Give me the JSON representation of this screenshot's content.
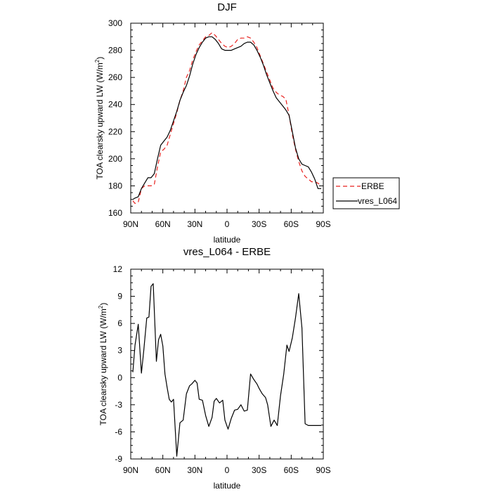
{
  "colors": {
    "erbe": "#e8221f",
    "model": "#000000"
  },
  "chart_data": [
    {
      "type": "line",
      "title": "DJF",
      "xlabel": "latitude",
      "ylabel": "TOA clearsky upward LW (W/m",
      "ylabel_sup": "2",
      "ylabel_end": ")",
      "xlim": [
        -90,
        90
      ],
      "ylim": [
        160,
        300
      ],
      "xticks": [
        -90,
        -60,
        -30,
        0,
        30,
        60,
        90
      ],
      "xticklabels": [
        "90N",
        "60N",
        "30N",
        "0",
        "30S",
        "60S",
        "90S"
      ],
      "yticks": [
        160,
        180,
        200,
        220,
        240,
        260,
        280,
        300
      ],
      "yticklabels": [
        "160",
        "180",
        "200",
        "220",
        "240",
        "260",
        "280",
        "300"
      ],
      "legend": {
        "position": "right",
        "labels": [
          "ERBE",
          "vres_L064"
        ]
      },
      "series": [
        {
          "name": "ERBE",
          "style": "dashed",
          "x": [
            -88,
            -86,
            -83,
            -80,
            -77,
            -74,
            -71,
            -68,
            -65,
            -62,
            -59,
            -56,
            -53,
            -50,
            -47,
            -44,
            -41,
            -38,
            -35,
            -32,
            -29,
            -26,
            -23,
            -20,
            -17,
            -14,
            -11,
            -8,
            -5,
            -2,
            1,
            4,
            7,
            10,
            13,
            16,
            19,
            22,
            25,
            28,
            31,
            34,
            37,
            40,
            43,
            46,
            49,
            52,
            55,
            58,
            61,
            64,
            67,
            70,
            73,
            76,
            79,
            82,
            85,
            88
          ],
          "values": [
            169,
            167,
            168,
            178,
            180,
            180,
            180,
            181,
            194,
            205,
            207,
            210,
            218,
            226,
            234,
            243,
            250,
            260,
            265,
            273,
            279,
            284,
            287,
            290,
            291,
            293,
            291,
            288,
            285,
            283,
            282,
            283,
            285,
            288,
            289,
            289,
            290,
            289,
            286,
            282,
            276,
            270,
            264,
            258,
            252,
            249,
            247,
            246,
            244,
            232,
            218,
            207,
            198,
            191,
            187,
            185,
            183,
            183,
            182,
            180
          ]
        },
        {
          "name": "vres_L064",
          "style": "solid",
          "x": [
            -88,
            -86,
            -83,
            -80,
            -77,
            -74,
            -71,
            -68,
            -65,
            -62,
            -59,
            -56,
            -53,
            -50,
            -47,
            -44,
            -41,
            -38,
            -35,
            -32,
            -29,
            -26,
            -23,
            -20,
            -17,
            -14,
            -11,
            -8,
            -5,
            -2,
            1,
            4,
            7,
            10,
            13,
            16,
            19,
            22,
            25,
            28,
            31,
            34,
            37,
            40,
            43,
            46,
            49,
            52,
            55,
            58,
            61,
            64,
            67,
            70,
            73,
            76,
            79,
            82,
            85,
            88
          ],
          "values": [
            170,
            171,
            172,
            178,
            182,
            186,
            186,
            189,
            200,
            210,
            213,
            216,
            221,
            228,
            235,
            243,
            249,
            254,
            261,
            270,
            277,
            282,
            286,
            289,
            290,
            290,
            288,
            285,
            281,
            280,
            280,
            280,
            281,
            282,
            283,
            285,
            286,
            286,
            284,
            280,
            275,
            269,
            262,
            256,
            250,
            245,
            242,
            239,
            236,
            232,
            220,
            208,
            200,
            196,
            195,
            194,
            190,
            185,
            178,
            178
          ]
        }
      ]
    },
    {
      "type": "line",
      "title": "vres_L064 - ERBE",
      "xlabel": "latitude",
      "ylabel": "TOA clearsky upward LW (W/m",
      "ylabel_sup": "2",
      "ylabel_end": ")",
      "xlim": [
        -90,
        90
      ],
      "ylim": [
        -9,
        12
      ],
      "xticks": [
        -90,
        -60,
        -30,
        0,
        30,
        60,
        90
      ],
      "xticklabels": [
        "90N",
        "60N",
        "30N",
        "0",
        "30S",
        "60S",
        "90S"
      ],
      "yticks": [
        -9,
        -6,
        -3,
        0,
        3,
        6,
        9,
        12
      ],
      "yticklabels": [
        "-9",
        "-6",
        "-3",
        "0",
        "3",
        "6",
        "9",
        "12"
      ],
      "series": [
        {
          "name": "vres_L064 - ERBE",
          "style": "solid",
          "x": [
            -88,
            -86,
            -83,
            -80,
            -78,
            -75,
            -73,
            -71,
            -69,
            -66,
            -64,
            -62,
            -60,
            -58,
            -56,
            -54,
            -52,
            -50,
            -47,
            -44,
            -41,
            -38,
            -35,
            -33,
            -30,
            -28,
            -26,
            -23,
            -20,
            -17,
            -14,
            -12,
            -10,
            -7,
            -4,
            -2,
            1,
            4,
            7,
            10,
            13,
            16,
            19,
            22,
            25,
            28,
            30,
            33,
            36,
            38,
            41,
            44,
            47,
            50,
            53,
            56,
            58,
            61,
            64,
            67,
            70,
            73,
            76,
            79,
            82,
            85,
            88
          ],
          "values": [
            0.6,
            3.6,
            5.9,
            0.5,
            2.8,
            6.6,
            6.7,
            10.1,
            10.4,
            1.8,
            4.2,
            4.8,
            3.5,
            0.4,
            -1.1,
            -2.4,
            -2.7,
            -2.4,
            -8.7,
            -5.0,
            -4.7,
            -1.8,
            -0.9,
            -0.7,
            -0.3,
            -0.6,
            -2.4,
            -2.5,
            -4.2,
            -5.4,
            -4.4,
            -2.6,
            -2.3,
            -2.8,
            -2.5,
            -4.7,
            -5.7,
            -4.5,
            -3.6,
            -3.5,
            -3.0,
            -3.7,
            -3.6,
            0.4,
            -0.2,
            -0.7,
            -1.2,
            -1.8,
            -2.2,
            -3.0,
            -5.4,
            -4.7,
            -5.3,
            -2.0,
            0.4,
            3.6,
            2.9,
            4.4,
            6.6,
            9.3,
            5.5,
            -5.1,
            -5.3,
            -5.3,
            -5.3,
            -5.3,
            -5.3
          ]
        }
      ]
    }
  ]
}
